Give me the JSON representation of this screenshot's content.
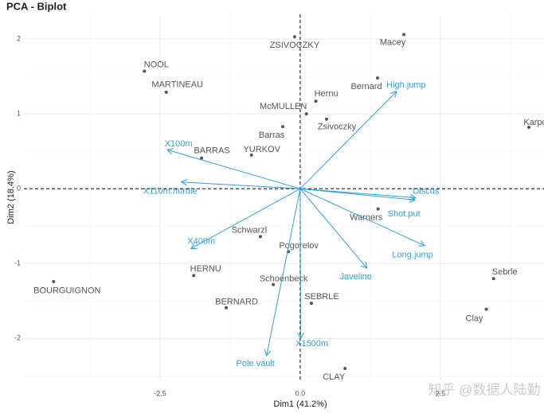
{
  "chart_data": {
    "type": "biplot",
    "title": "PCA - Biplot",
    "x_label": "Dim1 (41.2%)",
    "y_label": "Dim2 (18.4%)",
    "watermark": "知乎 @数据人陆勤",
    "xlim": [
      -4.93,
      4.35
    ],
    "ylim": [
      -2.56,
      2.33
    ],
    "xticks": [
      -2.5,
      {
        "value": 0,
        "label": "0.0"
      },
      2.5
    ],
    "yticks": [
      -2,
      -1,
      0,
      1,
      2
    ],
    "grid": true,
    "points": {
      "color": "#555555",
      "labels": [
        "ZSIVOCZKY",
        "Macey",
        "NOOL",
        "MARTINEAU",
        "Bernard",
        "Hernu",
        "McMULLEN",
        "Zsivoczky",
        "Karpo",
        "Barras",
        "BARRAS",
        "YURKOV",
        "Warners",
        "Schwarzl",
        "Pogorelov",
        "HERNU",
        "BOURGUIGNON",
        "Schoenbeck",
        "Sebrle",
        "BERNARD",
        "SEBRLE",
        "Clay",
        "CLAY"
      ],
      "x": [
        -0.1,
        1.85,
        -2.78,
        -2.39,
        1.38,
        0.28,
        0.11,
        0.47,
        4.08,
        -0.31,
        -1.76,
        -0.87,
        1.39,
        -0.71,
        -0.21,
        -1.9,
        -4.4,
        -0.48,
        3.45,
        -1.32,
        0.2,
        3.32,
        0.8
      ],
      "y": [
        2.03,
        2.06,
        1.57,
        1.29,
        1.48,
        1.17,
        1.0,
        0.93,
        0.82,
        0.83,
        0.41,
        0.45,
        -0.27,
        -0.64,
        -0.84,
        -1.16,
        -1.24,
        -1.28,
        -1.2,
        -1.59,
        -1.53,
        -1.61,
        -2.4
      ]
    },
    "arrows": {
      "color": "#2E9FDF",
      "labels": [
        "High.jump",
        "Discus",
        "Shot.put",
        "Long.jump",
        "Javeline",
        "X1500m",
        "Pole.vault",
        "X400m",
        "X110m.hurdle",
        "X100m"
      ],
      "x": [
        1.72,
        2.06,
        2.05,
        2.22,
        1.19,
        0.01,
        -0.6,
        -1.95,
        -2.12,
        -2.37
      ],
      "y": [
        1.3,
        -0.12,
        -0.15,
        -0.76,
        -1.06,
        -2.0,
        -2.23,
        -0.8,
        0.09,
        0.52
      ]
    }
  }
}
